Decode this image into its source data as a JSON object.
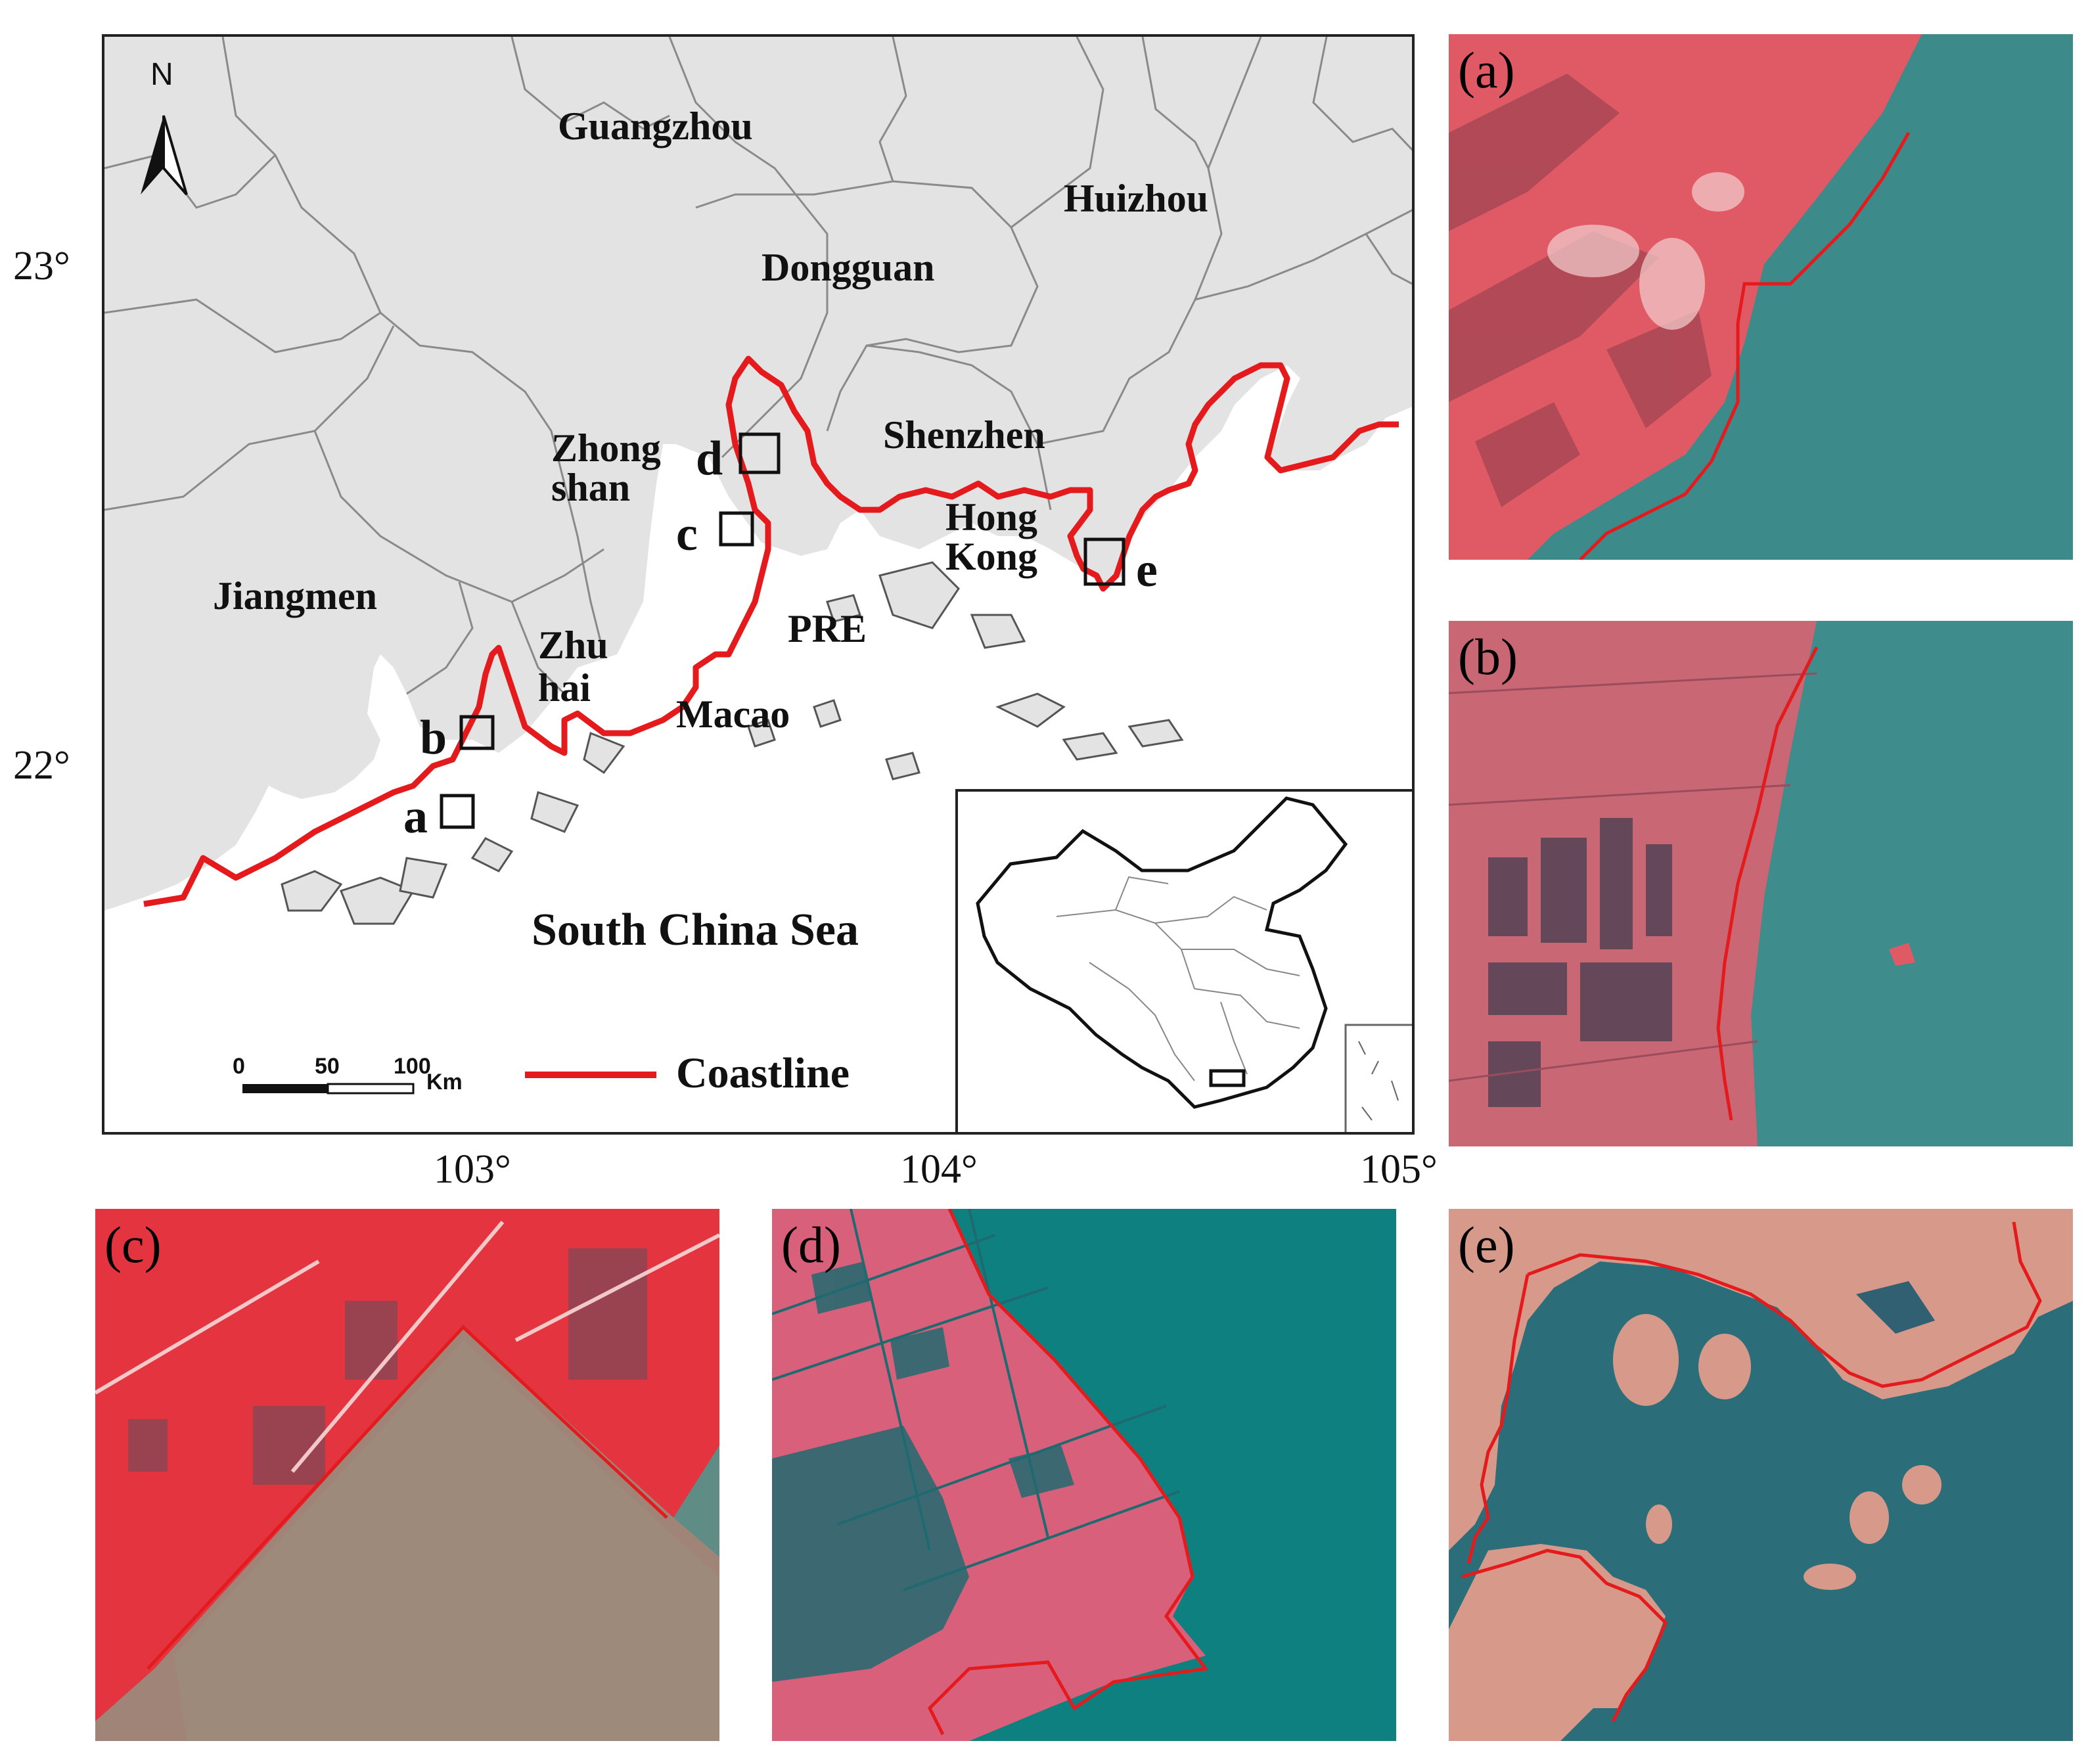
{
  "axes": {
    "y_ticks": [
      "23°",
      "22°"
    ],
    "x_ticks": [
      "103°",
      "104°",
      "105°"
    ]
  },
  "map": {
    "north_label": "N",
    "cities": {
      "guangzhou": "Guangzhou",
      "huizhou": "Huizhou",
      "dongguan": "Dongguan",
      "shenzhen": "Shenzhen",
      "zhongshan_1": "Zhong",
      "zhongshan_2": "shan",
      "jiangmen": "Jiangmen",
      "hongkong_1": "Hong",
      "hongkong_2": "Kong",
      "zhuhai_1": "Zhu",
      "zhuhai_2": "hai",
      "pre": "PRE",
      "macao": "Macao"
    },
    "sites": [
      "a",
      "b",
      "c",
      "d",
      "e"
    ],
    "sea_label": "South China Sea",
    "scale": {
      "t0": "0",
      "t1": "50",
      "t2": "100",
      "unit": "Km"
    },
    "legend": {
      "label": "Coastline",
      "color": "#e41a1c"
    }
  },
  "panels": {
    "a": "(a)",
    "b": "(b)",
    "c": "(c)",
    "d": "(d)",
    "e": "(e)"
  },
  "colors": {
    "land": "#e3e3e3",
    "boundary": "#8a8a8a",
    "coastline": "#e41a1c",
    "veg": "#e8606b",
    "water": "#3d8a8a"
  }
}
